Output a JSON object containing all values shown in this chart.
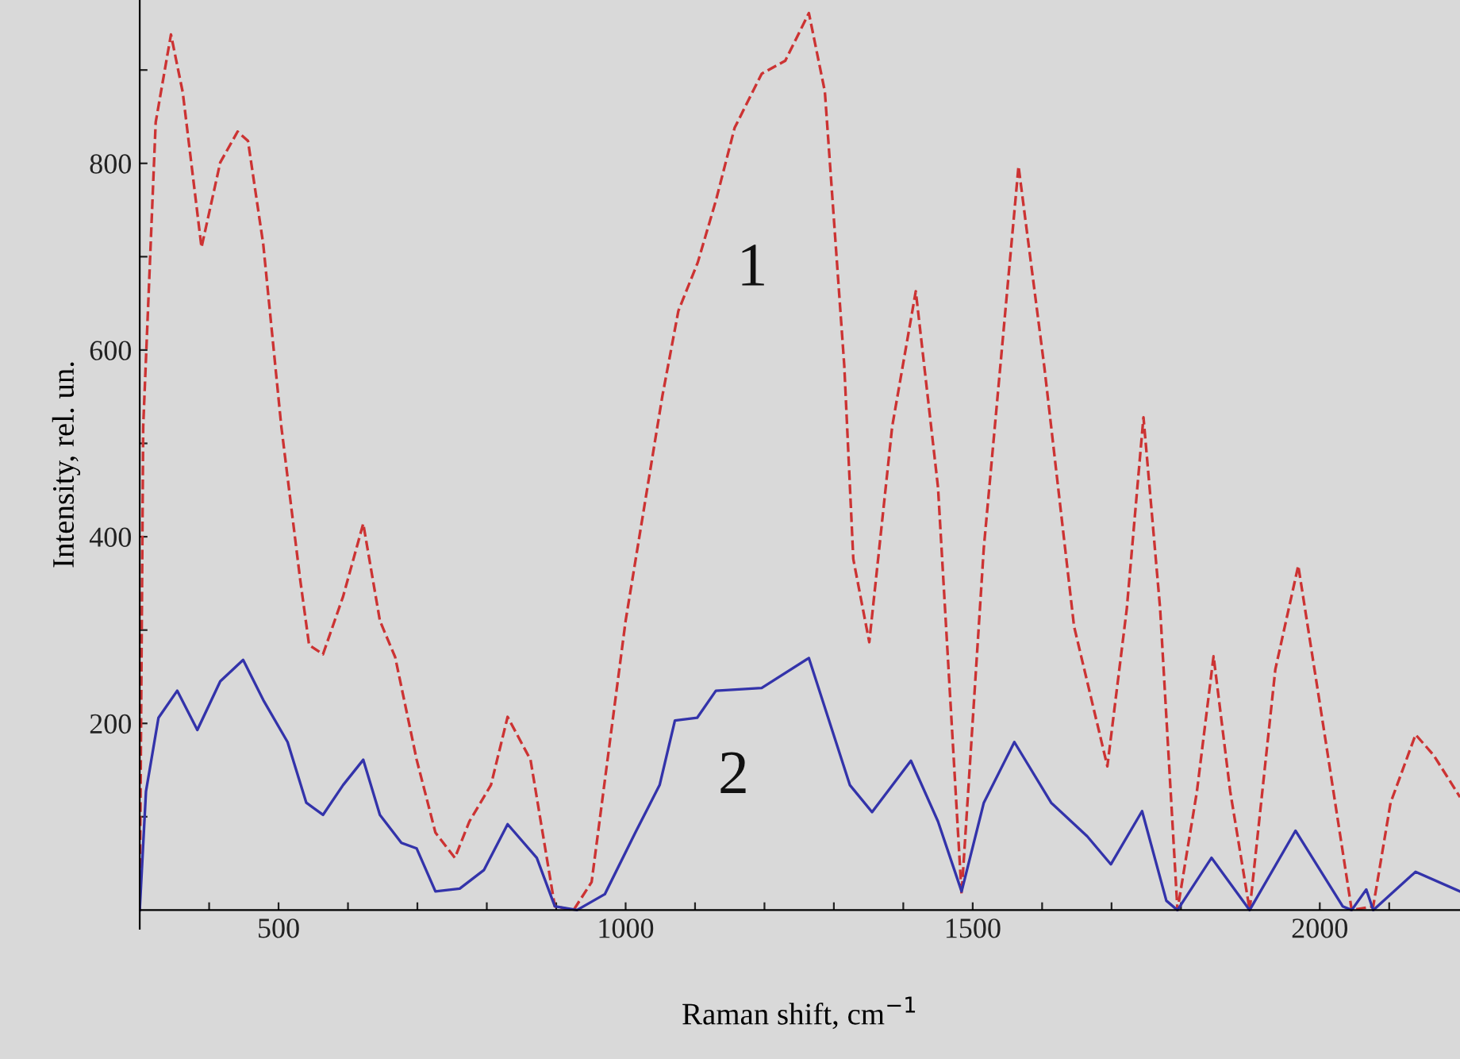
{
  "chart_data": {
    "type": "line",
    "xlabel": "Raman shift, cm$^{−1}$",
    "ylabel": "Intensity, rel. un.",
    "xlim": [
      300,
      2202
    ],
    "ylim": [
      -20,
      975
    ],
    "xticks": [
      {
        "value": 400,
        "label": null
      },
      500,
      {
        "value": 600,
        "label": null
      },
      {
        "value": 700,
        "label": null
      },
      {
        "value": 800,
        "label": null
      },
      {
        "value": 900,
        "label": null
      },
      1000,
      {
        "value": 1100,
        "label": null
      },
      {
        "value": 1200,
        "label": null
      },
      {
        "value": 1300,
        "label": null
      },
      {
        "value": 1400,
        "label": null
      },
      1500,
      {
        "value": 1600,
        "label": null
      },
      {
        "value": 1700,
        "label": null
      },
      {
        "value": 1800,
        "label": null
      },
      {
        "value": 1900,
        "label": null
      },
      2000,
      {
        "value": 2100,
        "label": null
      }
    ],
    "yticks": [
      {
        "value": 100,
        "label": null
      },
      200,
      {
        "value": 300,
        "label": null
      },
      400,
      {
        "value": 500,
        "label": null
      },
      600,
      {
        "value": 700,
        "label": null
      },
      800,
      {
        "value": 900,
        "label": null
      }
    ],
    "grid": false,
    "legend": false,
    "series": [
      {
        "name": "1",
        "color": "#cc3333",
        "line_style": "dashed",
        "x": [
          300,
          305,
          323,
          345,
          362,
          389,
          416,
          441,
          456,
          478,
          504,
          531,
          544,
          564,
          593,
          622,
          646,
          668,
          699,
          726,
          754,
          775,
          806,
          830,
          863,
          898,
          925,
          951,
          1000,
          1053,
          1076,
          1104,
          1130,
          1157,
          1196,
          1230,
          1264,
          1287,
          1315,
          1328,
          1351,
          1384,
          1418,
          1450,
          1484,
          1516,
          1566,
          1603,
          1646,
          1694,
          1722,
          1746,
          1770,
          1795,
          1823,
          1847,
          1871,
          1899,
          1936,
          1969,
          2006,
          2046,
          2077,
          2102,
          2138,
          2164,
          2202
        ],
        "values": [
          0,
          518,
          844,
          938,
          876,
          710,
          801,
          834,
          824,
          713,
          518,
          355,
          284,
          274,
          336,
          414,
          310,
          271,
          161,
          83,
          56,
          95,
          134,
          207,
          161,
          4,
          0,
          30,
          310,
          551,
          642,
          694,
          760,
          838,
          896,
          910,
          961,
          877,
          583,
          376,
          287,
          518,
          663,
          453,
          17,
          388,
          797,
          583,
          304,
          154,
          323,
          528,
          323,
          0,
          127,
          272,
          127,
          0,
          258,
          369,
          193,
          0,
          4,
          115,
          188,
          166,
          121
        ]
      },
      {
        "name": "2",
        "color": "#3333aa",
        "line_style": "solid",
        "x": [
          300,
          309,
          327,
          354,
          383,
          416,
          449,
          478,
          513,
          540,
          564,
          593,
          622,
          646,
          677,
          699,
          726,
          761,
          796,
          830,
          872,
          898,
          930,
          970,
          1014,
          1049,
          1071,
          1103,
          1130,
          1196,
          1264,
          1323,
          1355,
          1411,
          1450,
          1484,
          1516,
          1560,
          1613,
          1665,
          1699,
          1744,
          1779,
          1795,
          1844,
          1899,
          1965,
          2033,
          2046,
          2067,
          2077,
          2138,
          2202
        ],
        "values": [
          0,
          127,
          206,
          235,
          193,
          245,
          268,
          225,
          180,
          115,
          102,
          134,
          161,
          102,
          72,
          66,
          20,
          23,
          43,
          92,
          56,
          4,
          0,
          17,
          83,
          134,
          203,
          206,
          235,
          238,
          270,
          134,
          105,
          160,
          95,
          20,
          115,
          180,
          115,
          79,
          49,
          106,
          10,
          0,
          56,
          0,
          85,
          4,
          0,
          22,
          0,
          41,
          20
        ]
      }
    ]
  }
}
